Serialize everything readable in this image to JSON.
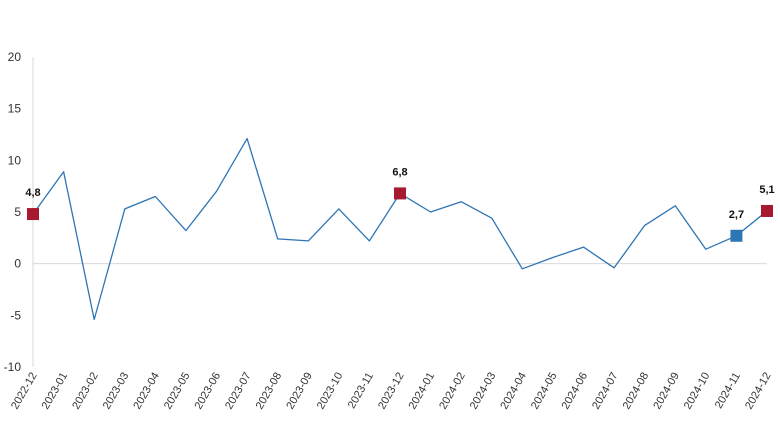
{
  "chart_data": {
    "type": "line",
    "title": "",
    "xlabel": "",
    "ylabel": "",
    "ylim": [
      -10,
      20
    ],
    "yticks": [
      20,
      15,
      10,
      5,
      0,
      -5,
      -10
    ],
    "grid": "y-zero-line",
    "categories": [
      "2022-12",
      "2023-01",
      "2023-02",
      "2023-03",
      "2023-04",
      "2023-05",
      "2023-06",
      "2023-07",
      "2023-08",
      "2023-09",
      "2023-10",
      "2023-11",
      "2023-12",
      "2024-01",
      "2024-02",
      "2024-03",
      "2024-04",
      "2024-05",
      "2024-06",
      "2024-07",
      "2024-08",
      "2024-09",
      "2024-10",
      "2024-11",
      "2024-12"
    ],
    "series": [
      {
        "name": "",
        "color": "#2e75b6",
        "values": [
          4.8,
          8.9,
          -5.4,
          5.3,
          6.5,
          3.2,
          7.0,
          12.1,
          2.4,
          2.2,
          5.3,
          2.2,
          6.8,
          5.0,
          6.0,
          4.4,
          -0.5,
          0.6,
          1.6,
          -0.4,
          3.7,
          5.6,
          1.4,
          2.7,
          5.1
        ]
      }
    ],
    "highlights": [
      {
        "index": 0,
        "label": "4,8",
        "color": "#a6192e"
      },
      {
        "index": 12,
        "label": "6,8",
        "color": "#a6192e"
      },
      {
        "index": 23,
        "label": "2,7",
        "color": "#2e75b6"
      },
      {
        "index": 24,
        "label": "5,1",
        "color": "#a6192e"
      }
    ]
  }
}
